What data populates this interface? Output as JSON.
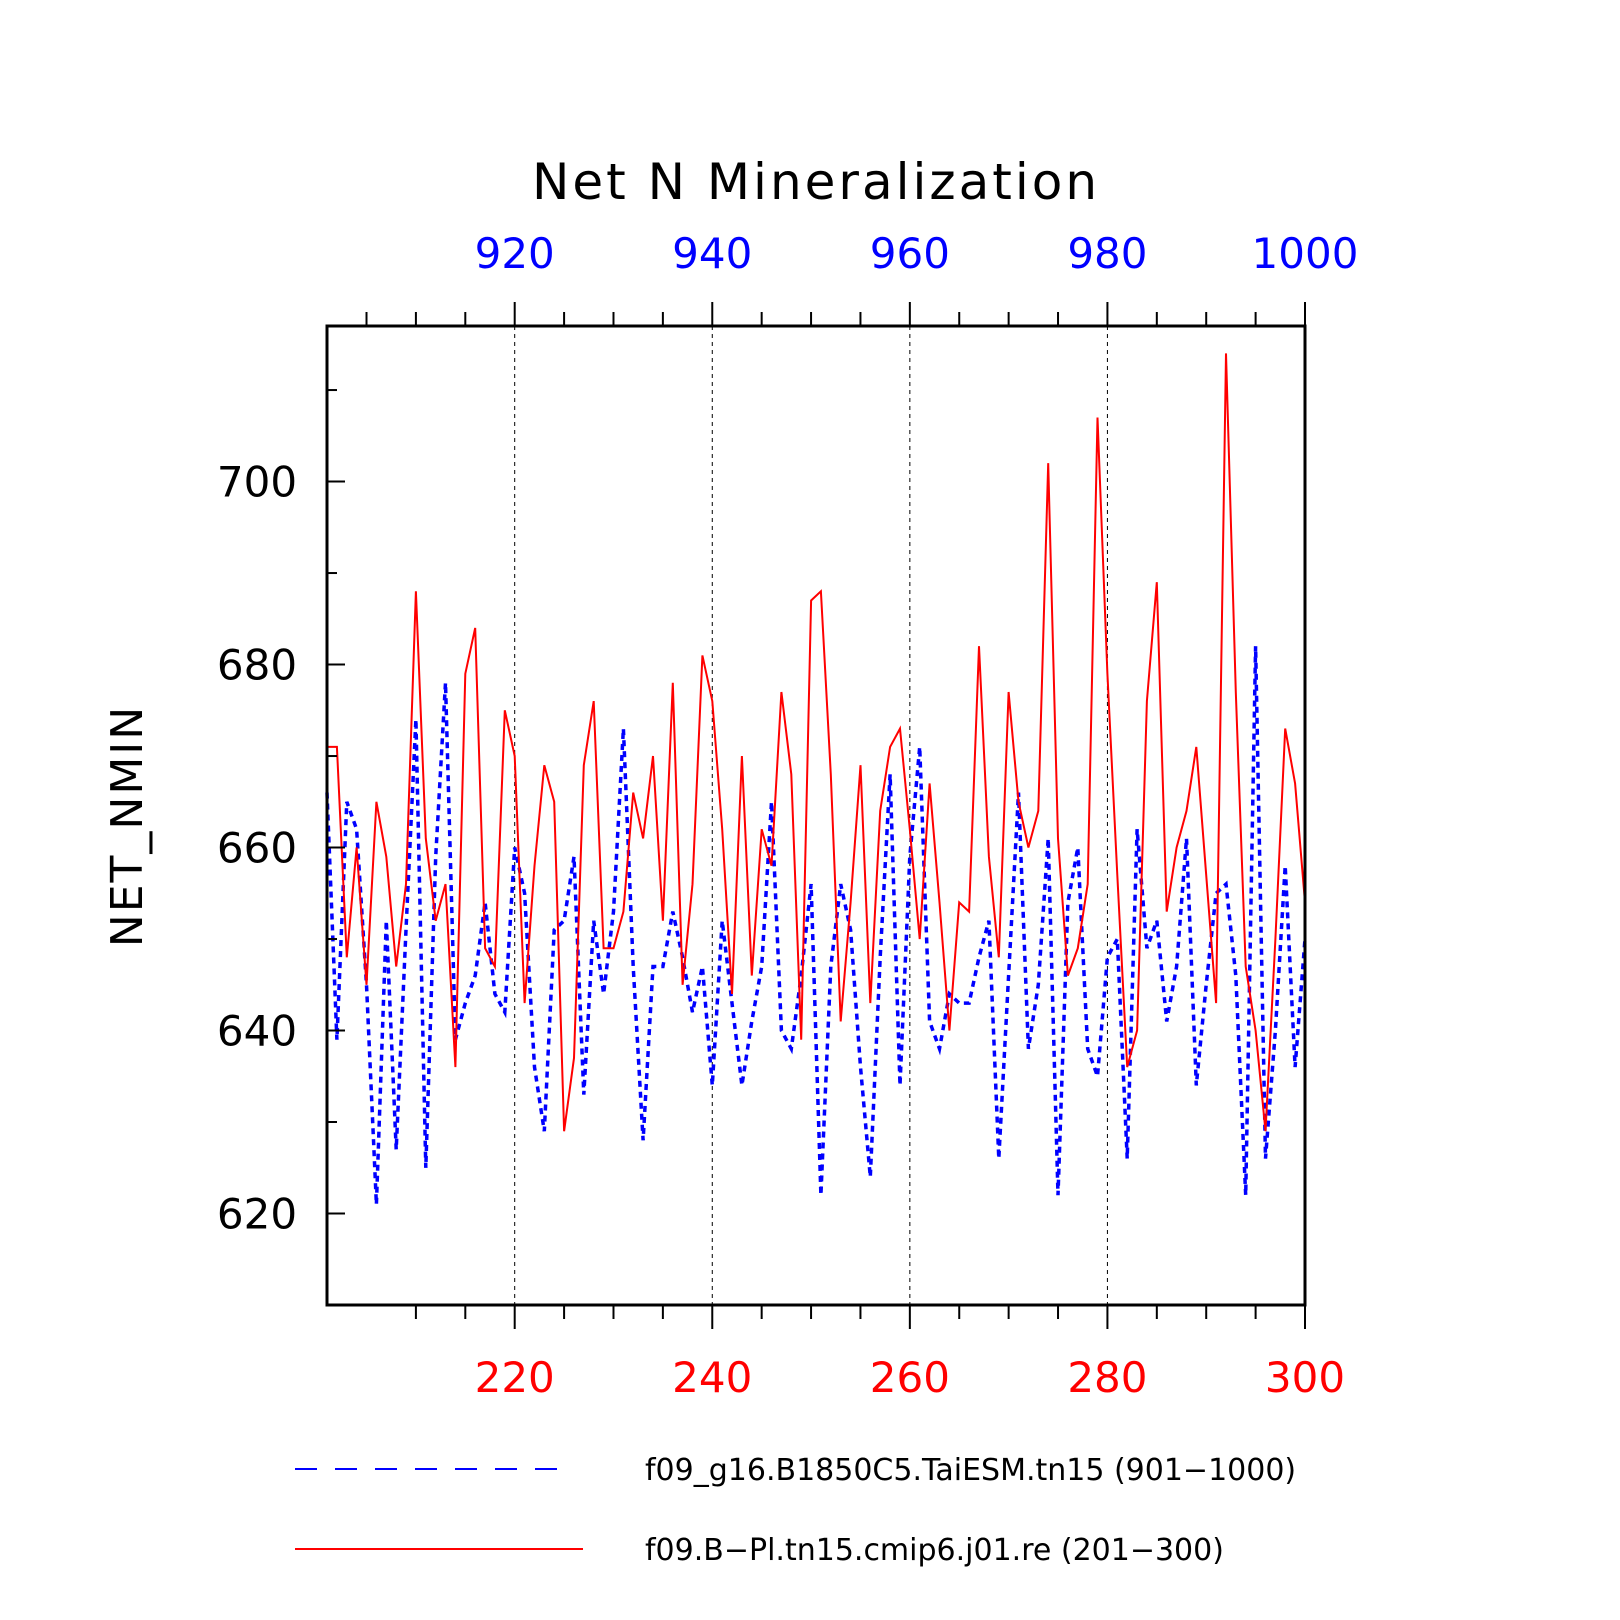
{
  "chart_data": {
    "type": "line",
    "title": "Net N Mineralization",
    "ylabel": "NET_NMIN",
    "ylim": [
      610,
      717
    ],
    "yticks": [
      "620",
      "640",
      "660",
      "680",
      "700"
    ],
    "x_bottom": {
      "range": [
        201,
        300
      ],
      "ticks": [
        "220",
        "240",
        "260",
        "280",
        "300"
      ],
      "color": "#ff0000"
    },
    "x_top": {
      "range": [
        901,
        1000
      ],
      "ticks": [
        "920",
        "940",
        "960",
        "980",
        "1000"
      ],
      "color": "#0000ff"
    },
    "grid": "vertical dashed at major top-axis ticks",
    "legend_position": "bottom",
    "series": [
      {
        "name": "f09_g16.B1850C5.TaiESM.tn15 (901−1000)",
        "color": "#0000ff",
        "style": "dashed",
        "axis": "top",
        "x": [
          901,
          902,
          903,
          904,
          905,
          906,
          907,
          908,
          909,
          910,
          911,
          912,
          913,
          914,
          915,
          916,
          917,
          918,
          919,
          920,
          921,
          922,
          923,
          924,
          925,
          926,
          927,
          928,
          929,
          930,
          931,
          932,
          933,
          934,
          935,
          936,
          937,
          938,
          939,
          940,
          941,
          942,
          943,
          944,
          945,
          946,
          947,
          948,
          949,
          950,
          951,
          952,
          953,
          954,
          955,
          956,
          957,
          958,
          959,
          960,
          961,
          962,
          963,
          964,
          965,
          966,
          967,
          968,
          969,
          970,
          971,
          972,
          973,
          974,
          975,
          976,
          977,
          978,
          979,
          980,
          981,
          982,
          983,
          984,
          985,
          986,
          987,
          988,
          989,
          990,
          991,
          992,
          993,
          994,
          995,
          996,
          997,
          998,
          999,
          1000
        ],
        "values": [
          666,
          639,
          665,
          662,
          645,
          621,
          652,
          627,
          651,
          674,
          625,
          659,
          678,
          639,
          643,
          646,
          654,
          644,
          642,
          660,
          655,
          636,
          629,
          651,
          652,
          659,
          633,
          652,
          644,
          653,
          673,
          647,
          628,
          647,
          647,
          653,
          648,
          642,
          647,
          634,
          652,
          643,
          634,
          641,
          647,
          665,
          640,
          638,
          646,
          656,
          622,
          647,
          656,
          651,
          636,
          624,
          648,
          668,
          634,
          659,
          671,
          641,
          638,
          644,
          643,
          643,
          648,
          652,
          626,
          646,
          666,
          638,
          645,
          661,
          622,
          654,
          660,
          638,
          635,
          648,
          650,
          626,
          662,
          649,
          652,
          641,
          647,
          661,
          634,
          645,
          655,
          656,
          646,
          622,
          682,
          626,
          640,
          658,
          636,
          650
        ]
      },
      {
        "name": "f09.B−Pl.tn15.cmip6.j01.re (201−300)",
        "color": "#ff0000",
        "style": "solid",
        "axis": "bottom",
        "x": [
          201,
          202,
          203,
          204,
          205,
          206,
          207,
          208,
          209,
          210,
          211,
          212,
          213,
          214,
          215,
          216,
          217,
          218,
          219,
          220,
          221,
          222,
          223,
          224,
          225,
          226,
          227,
          228,
          229,
          230,
          231,
          232,
          233,
          234,
          235,
          236,
          237,
          238,
          239,
          240,
          241,
          242,
          243,
          244,
          245,
          246,
          247,
          248,
          249,
          250,
          251,
          252,
          253,
          254,
          255,
          256,
          257,
          258,
          259,
          260,
          261,
          262,
          263,
          264,
          265,
          266,
          267,
          268,
          269,
          270,
          271,
          272,
          273,
          274,
          275,
          276,
          277,
          278,
          279,
          280,
          281,
          282,
          283,
          284,
          285,
          286,
          287,
          288,
          289,
          290,
          291,
          292,
          293,
          294,
          295,
          296,
          297,
          298,
          299,
          300
        ],
        "values": [
          671,
          671,
          648,
          660,
          645,
          665,
          659,
          647,
          656,
          688,
          661,
          652,
          656,
          636,
          679,
          684,
          649,
          647,
          675,
          670,
          643,
          658,
          669,
          665,
          629,
          637,
          669,
          676,
          649,
          649,
          653,
          666,
          661,
          670,
          652,
          678,
          645,
          656,
          681,
          676,
          662,
          644,
          670,
          646,
          662,
          658,
          677,
          668,
          639,
          687,
          688,
          668,
          641,
          654,
          669,
          643,
          664,
          671,
          673,
          662,
          650,
          667,
          654,
          640,
          654,
          653,
          682,
          659,
          648,
          677,
          665,
          660,
          664,
          702,
          661,
          646,
          649,
          656,
          707,
          679,
          657,
          636,
          640,
          676,
          689,
          653,
          660,
          664,
          671,
          657,
          643,
          714,
          677,
          647,
          640,
          629,
          650,
          673,
          667,
          654
        ]
      }
    ]
  }
}
